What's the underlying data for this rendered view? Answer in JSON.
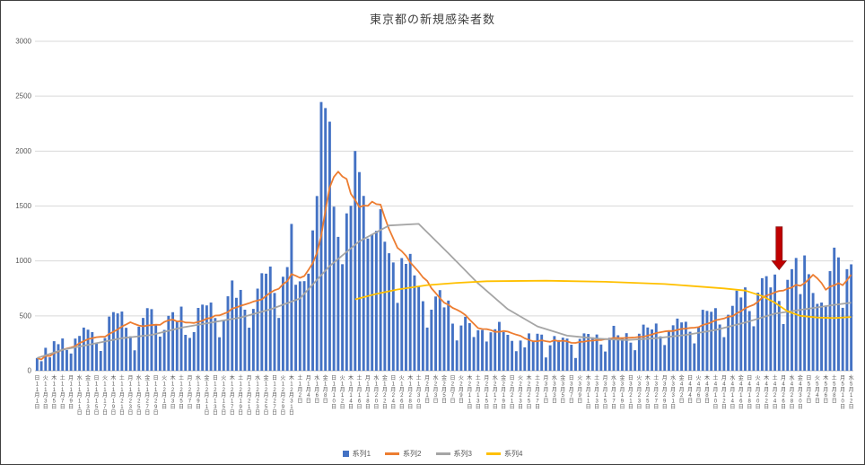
{
  "chart_data": {
    "type": "bar",
    "title": "東京都の新規感染者数",
    "ylim": [
      0,
      3000
    ],
    "yticks": [
      0,
      500,
      1000,
      1500,
      2000,
      2500,
      3000
    ],
    "grid": true,
    "legend_position": "bottom",
    "n_points": 193,
    "x_tick_every": 2,
    "x_tick_labels": [
      [
        "日",
        "11",
        "1"
      ],
      [
        "火",
        "11",
        "3"
      ],
      [
        "木",
        "11",
        "5"
      ],
      [
        "土",
        "11",
        "7"
      ],
      [
        "月",
        "11",
        "9"
      ],
      [
        "水",
        "11",
        "11"
      ],
      [
        "金",
        "11",
        "13"
      ],
      [
        "日",
        "11",
        "15"
      ],
      [
        "火",
        "11",
        "17"
      ],
      [
        "木",
        "11",
        "19"
      ],
      [
        "土",
        "11",
        "21"
      ],
      [
        "月",
        "11",
        "23"
      ],
      [
        "水",
        "11",
        "25"
      ],
      [
        "金",
        "11",
        "27"
      ],
      [
        "日",
        "11",
        "29"
      ],
      [
        "火",
        "12",
        "1"
      ],
      [
        "木",
        "12",
        "3"
      ],
      [
        "土",
        "12",
        "5"
      ],
      [
        "月",
        "12",
        "7"
      ],
      [
        "水",
        "12",
        "9"
      ],
      [
        "金",
        "12",
        "11"
      ],
      [
        "日",
        "12",
        "13"
      ],
      [
        "火",
        "12",
        "15"
      ],
      [
        "木",
        "12",
        "17"
      ],
      [
        "土",
        "12",
        "19"
      ],
      [
        "月",
        "12",
        "21"
      ],
      [
        "水",
        "12",
        "23"
      ],
      [
        "金",
        "12",
        "25"
      ],
      [
        "日",
        "12",
        "27"
      ],
      [
        "火",
        "12",
        "29"
      ],
      [
        "木",
        "12",
        "31"
      ],
      [
        "土",
        "1",
        "2"
      ],
      [
        "月",
        "1",
        "4"
      ],
      [
        "水",
        "1",
        "6"
      ],
      [
        "金",
        "1",
        "8"
      ],
      [
        "日",
        "1",
        "10"
      ],
      [
        "火",
        "1",
        "12"
      ],
      [
        "木",
        "1",
        "14"
      ],
      [
        "土",
        "1",
        "16"
      ],
      [
        "月",
        "1",
        "18"
      ],
      [
        "水",
        "1",
        "20"
      ],
      [
        "金",
        "1",
        "22"
      ],
      [
        "日",
        "1",
        "24"
      ],
      [
        "火",
        "1",
        "26"
      ],
      [
        "木",
        "1",
        "28"
      ],
      [
        "土",
        "1",
        "30"
      ],
      [
        "月",
        "2",
        "1"
      ],
      [
        "水",
        "2",
        "3"
      ],
      [
        "金",
        "2",
        "5"
      ],
      [
        "日",
        "2",
        "7"
      ],
      [
        "火",
        "2",
        "9"
      ],
      [
        "木",
        "2",
        "11"
      ],
      [
        "土",
        "2",
        "13"
      ],
      [
        "月",
        "2",
        "15"
      ],
      [
        "水",
        "2",
        "17"
      ],
      [
        "金",
        "2",
        "19"
      ],
      [
        "日",
        "2",
        "21"
      ],
      [
        "火",
        "2",
        "23"
      ],
      [
        "木",
        "2",
        "25"
      ],
      [
        "土",
        "2",
        "27"
      ],
      [
        "月",
        "3",
        "1"
      ],
      [
        "水",
        "3",
        "3"
      ],
      [
        "金",
        "3",
        "5"
      ],
      [
        "日",
        "3",
        "7"
      ],
      [
        "火",
        "3",
        "9"
      ],
      [
        "木",
        "3",
        "11"
      ],
      [
        "土",
        "3",
        "13"
      ],
      [
        "月",
        "3",
        "15"
      ],
      [
        "水",
        "3",
        "17"
      ],
      [
        "金",
        "3",
        "19"
      ],
      [
        "日",
        "3",
        "21"
      ],
      [
        "火",
        "3",
        "23"
      ],
      [
        "木",
        "3",
        "25"
      ],
      [
        "土",
        "3",
        "27"
      ],
      [
        "月",
        "3",
        "29"
      ],
      [
        "水",
        "3",
        "31"
      ],
      [
        "金",
        "4",
        "2"
      ],
      [
        "日",
        "4",
        "4"
      ],
      [
        "火",
        "4",
        "6"
      ],
      [
        "木",
        "4",
        "8"
      ],
      [
        "土",
        "4",
        "10"
      ],
      [
        "月",
        "4",
        "12"
      ],
      [
        "水",
        "4",
        "14"
      ],
      [
        "金",
        "4",
        "16"
      ],
      [
        "日",
        "4",
        "18"
      ],
      [
        "火",
        "4",
        "20"
      ],
      [
        "木",
        "4",
        "22"
      ],
      [
        "土",
        "4",
        "24"
      ],
      [
        "月",
        "4",
        "26"
      ],
      [
        "水",
        "4",
        "28"
      ],
      [
        "金",
        "4",
        "30"
      ],
      [
        "日",
        "5",
        "2"
      ],
      [
        "火",
        "5",
        "4"
      ],
      [
        "木",
        "5",
        "6"
      ],
      [
        "土",
        "5",
        "8"
      ],
      [
        "月",
        "5",
        "10"
      ],
      [
        "水",
        "5",
        "12"
      ]
    ],
    "series": [
      {
        "name": "系列1",
        "type": "bar",
        "color": "#4472C4",
        "values": [
          116,
          87,
          209,
          122,
          269,
          242,
          294,
          189,
          157,
          293,
          317,
          393,
          374,
          352,
          255,
          180,
          298,
          493,
          534,
          522,
          539,
          391,
          314,
          186,
          401,
          481,
          570,
          561,
          418,
          311,
          372,
          500,
          533,
          449,
          584,
          327,
          299,
          352,
          572,
          602,
          595,
          621,
          480,
          305,
          460,
          678,
          822,
          664,
          736,
          556,
          392,
          563,
          748,
          888,
          884,
          949,
          708,
          481,
          856,
          944,
          1337,
          783,
          814,
          816,
          884,
          1278,
          1591,
          2447,
          2392,
          2268,
          1494,
          1219,
          970,
          1433,
          1502,
          2001,
          1809,
          1592,
          1204,
          1240,
          1274,
          1471,
          1175,
          1070,
          986,
          618,
          1026,
          973,
          1064,
          868,
          769,
          633,
          393,
          556,
          676,
          734,
          577,
          639,
          429,
          276,
          412,
          491,
          434,
          307,
          369,
          371,
          266,
          350,
          378,
          445,
          353,
          327,
          272,
          178,
          275,
          213,
          340,
          270,
          337,
          329,
          121,
          232,
          316,
          279,
          301,
          293,
          237,
          116,
          290,
          340,
          335,
          304,
          330,
          239,
          175,
          300,
          409,
          323,
          303,
          342,
          256,
          187,
          337,
          420,
          394,
          376,
          430,
          313,
          234,
          364,
          414,
          475,
          440,
          446,
          355,
          249,
          399,
          555,
          545,
          537,
          570,
          421,
          306,
          510,
          591,
          729,
          667,
          759,
          543,
          405,
          711,
          843,
          861,
          759,
          876,
          635,
          425,
          828,
          925,
          1027,
          698,
          1050,
          879,
          708,
          609,
          621,
          591,
          907,
          1121,
          1032,
          573,
          925,
          969
        ]
      },
      {
        "name": "系列2",
        "type": "line",
        "color": "#ED7D31",
        "values": [
          116,
          102,
          137,
          134,
          161,
          174,
          191,
          202,
          212,
          224,
          252,
          269,
          288,
          296,
          306,
          309,
          310,
          335,
          355,
          376,
          403,
          422,
          442,
          426,
          412,
          405,
          412,
          415,
          419,
          418,
          445,
          459,
          466,
          449,
          452,
          439,
          438,
          435,
          445,
          455,
          476,
          481,
          503,
          504,
          519,
          534,
          566,
          576,
          592,
          603,
          615,
          630,
          640,
          650,
          681,
          711,
          733,
          746,
          788,
          816,
          880,
          865,
          846,
          862,
          919,
          979,
          1072,
          1230,
          1460,
          1668,
          1765,
          1813,
          1769,
          1746,
          1611,
          1555,
          1490,
          1504,
          1502,
          1540,
          1517,
          1513,
          1395,
          1289,
          1203,
          1119,
          1089,
          1046,
          987,
          944,
          901,
          850,
          818,
          751,
          708,
          661,
          620,
          601,
          572,
          555,
          535,
          508,
          465,
          427,
          388,
          380,
          379,
          370,
          354,
          355,
          362,
          356,
          342,
          329,
          318,
          295,
          280,
          268,
          269,
          277,
          269,
          263,
          278,
          269,
          274,
          267,
          254,
          253,
          262,
          265,
          273,
          274,
          279,
          279,
          288,
          289,
          299,
          297,
          297,
          299,
          301,
          303,
          308,
          310,
          320,
          330,
          343,
          351,
          358,
          362,
          361,
          372,
          381,
          384,
          390,
          392,
          397,
          417,
          427,
          441,
          459,
          468,
          476,
          492,
          497,
          523,
          542,
          569,
          586,
          601,
          629,
          665,
          684,
          697,
          714,
          727,
          730,
          747,
          758,
          782,
          773,
          798,
          833,
          874,
          842,
          799,
          737,
          766,
          777,
          798,
          779,
          824,
          874
        ]
      },
      {
        "name": "系列3",
        "type": "line",
        "color": "#A5A5A5",
        "points": [
          [
            0,
            116
          ],
          [
            6,
            191
          ],
          [
            13,
            244
          ],
          [
            20,
            297
          ],
          [
            27,
            326
          ],
          [
            34,
            392
          ],
          [
            41,
            438
          ],
          [
            48,
            485
          ],
          [
            55,
            559
          ],
          [
            62,
            658
          ],
          [
            69,
            954
          ],
          [
            76,
            1179
          ],
          [
            83,
            1323
          ],
          [
            90,
            1337
          ],
          [
            97,
            1070
          ],
          [
            104,
            795
          ],
          [
            111,
            561
          ],
          [
            118,
            404
          ],
          [
            125,
            320
          ],
          [
            132,
            293
          ],
          [
            139,
            279
          ],
          [
            146,
            297
          ],
          [
            153,
            326
          ],
          [
            160,
            371
          ],
          [
            167,
            439
          ],
          [
            174,
            520
          ],
          [
            181,
            560
          ],
          [
            188,
            600
          ],
          [
            192,
            620
          ]
        ]
      },
      {
        "name": "系列4",
        "type": "line",
        "color": "#FFC000",
        "points": [
          [
            75,
            650
          ],
          [
            80,
            700
          ],
          [
            85,
            740
          ],
          [
            92,
            780
          ],
          [
            99,
            800
          ],
          [
            106,
            815
          ],
          [
            120,
            820
          ],
          [
            134,
            810
          ],
          [
            148,
            790
          ],
          [
            155,
            770
          ],
          [
            162,
            750
          ],
          [
            167,
            730
          ],
          [
            171,
            680
          ],
          [
            174,
            620
          ],
          [
            177,
            540
          ],
          [
            180,
            500
          ],
          [
            184,
            485
          ],
          [
            188,
            480
          ],
          [
            192,
            490
          ]
        ]
      }
    ],
    "annotation": {
      "shape": "down-arrow",
      "x_index": 175,
      "y_top": 1310,
      "y_tip": 920,
      "color": "#C00000"
    }
  },
  "colors": {
    "gridline": "#D9D9D9",
    "axis": "#BFBFBF",
    "tick_text": "#595959",
    "title_text": "#404040"
  }
}
